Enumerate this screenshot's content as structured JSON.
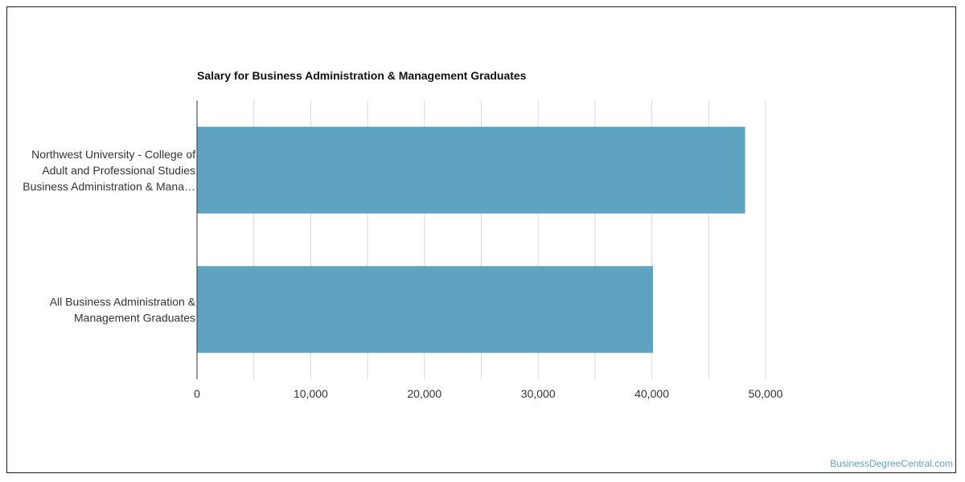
{
  "chart_data": {
    "type": "bar",
    "orientation": "horizontal",
    "title": "Salary for Business Administration & Management Graduates",
    "categories": [
      [
        "Northwest University - College of",
        "Adult and Professional Studies",
        "Business Administration & Mana…"
      ],
      [
        "All Business Administration &",
        "Management Graduates"
      ]
    ],
    "values": [
      48200,
      40100
    ],
    "xlim": [
      0,
      50000
    ],
    "x_ticks": [
      0,
      10000,
      20000,
      30000,
      40000,
      50000
    ],
    "x_tick_labels": [
      "0",
      "10,000",
      "20,000",
      "30,000",
      "40,000",
      "50,000"
    ],
    "grid": true,
    "bar_color": "#5ea3bf"
  },
  "watermark": {
    "text": "BusinessDegreeCentral.com",
    "color": "#5ea3bf"
  }
}
